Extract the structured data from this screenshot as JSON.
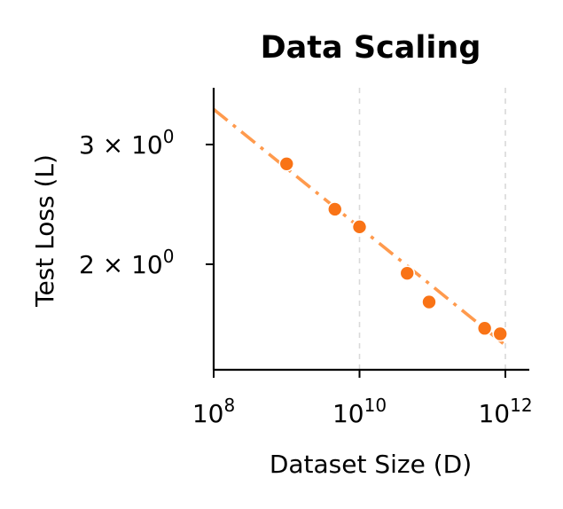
{
  "chart_data": {
    "type": "scatter",
    "title": "Data Scaling",
    "xlabel": "Dataset Size (D)",
    "ylabel": "Test Loss (L)",
    "xscale": "log",
    "yscale": "log",
    "xlim": [
      100000000,
      3000000000000
    ],
    "ylim": [
      1.5,
      3.4
    ],
    "grid": "x-dashed",
    "x_ticks": [
      {
        "value": 100000000,
        "base": "10",
        "exp": "8"
      },
      {
        "value": 10000000000,
        "base": "10",
        "exp": "10"
      },
      {
        "value": 1000000000000,
        "base": "10",
        "exp": "12"
      }
    ],
    "y_ticks": [
      {
        "value": 3,
        "mant": "3 × 10",
        "exp": "0"
      },
      {
        "value": 2,
        "mant": "2 × 10",
        "exp": "0"
      }
    ],
    "series": [
      {
        "kind": "points",
        "color": "#f97316",
        "x": [
          1000000000,
          4600000000,
          10000000000,
          45000000000,
          90000000000,
          520000000000,
          850000000000
        ],
        "y": [
          2.81,
          2.41,
          2.27,
          1.94,
          1.76,
          1.61,
          1.58
        ]
      }
    ],
    "fit_line": {
      "color": "#ff9a4d",
      "style": "dash-dot",
      "x": [
        100000000,
        1000000000000
      ],
      "y": [
        3.38,
        1.52
      ]
    }
  }
}
